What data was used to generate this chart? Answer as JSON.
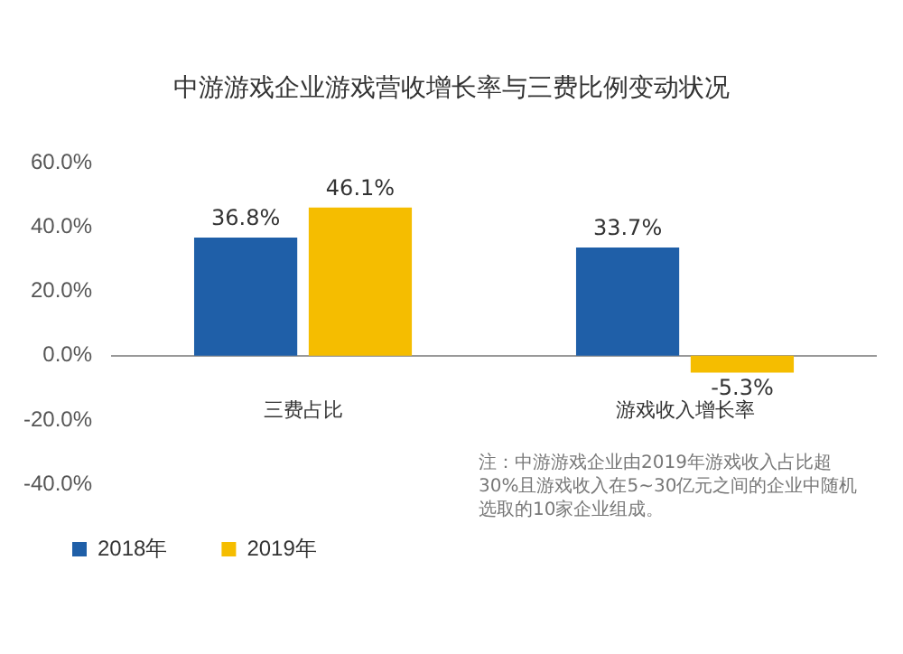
{
  "chart_data": {
    "type": "bar",
    "title": "中游游戏企业游戏营收增长率与三费比例变动状况",
    "categories": [
      "三费占比",
      "游戏收入增长率"
    ],
    "series": [
      {
        "name": "2018年",
        "color": "#1f5fa8",
        "values": [
          36.8,
          33.7
        ],
        "value_labels": [
          "36.8%",
          "33.7%"
        ]
      },
      {
        "name": "2019年",
        "color": "#f5bd00",
        "values": [
          46.1,
          -5.3
        ],
        "value_labels": [
          "46.1%",
          "-5.3%"
        ]
      }
    ],
    "ylim": [
      -40,
      60
    ],
    "yticks": [
      {
        "value": -40,
        "label": "-40.0%"
      },
      {
        "value": -20,
        "label": "-20.0%"
      },
      {
        "value": 0,
        "label": "0.0%"
      },
      {
        "value": 20,
        "label": "20.0%"
      },
      {
        "value": 40,
        "label": "40.0%"
      },
      {
        "value": 60,
        "label": "60.0%"
      }
    ],
    "grid": false,
    "legend": "bottom",
    "annotations": [
      "注：中游游戏企业由2019年游戏收入占比超30%且游戏收入在5~30亿元之间的企业中随机选取的10家企业组成。"
    ]
  }
}
